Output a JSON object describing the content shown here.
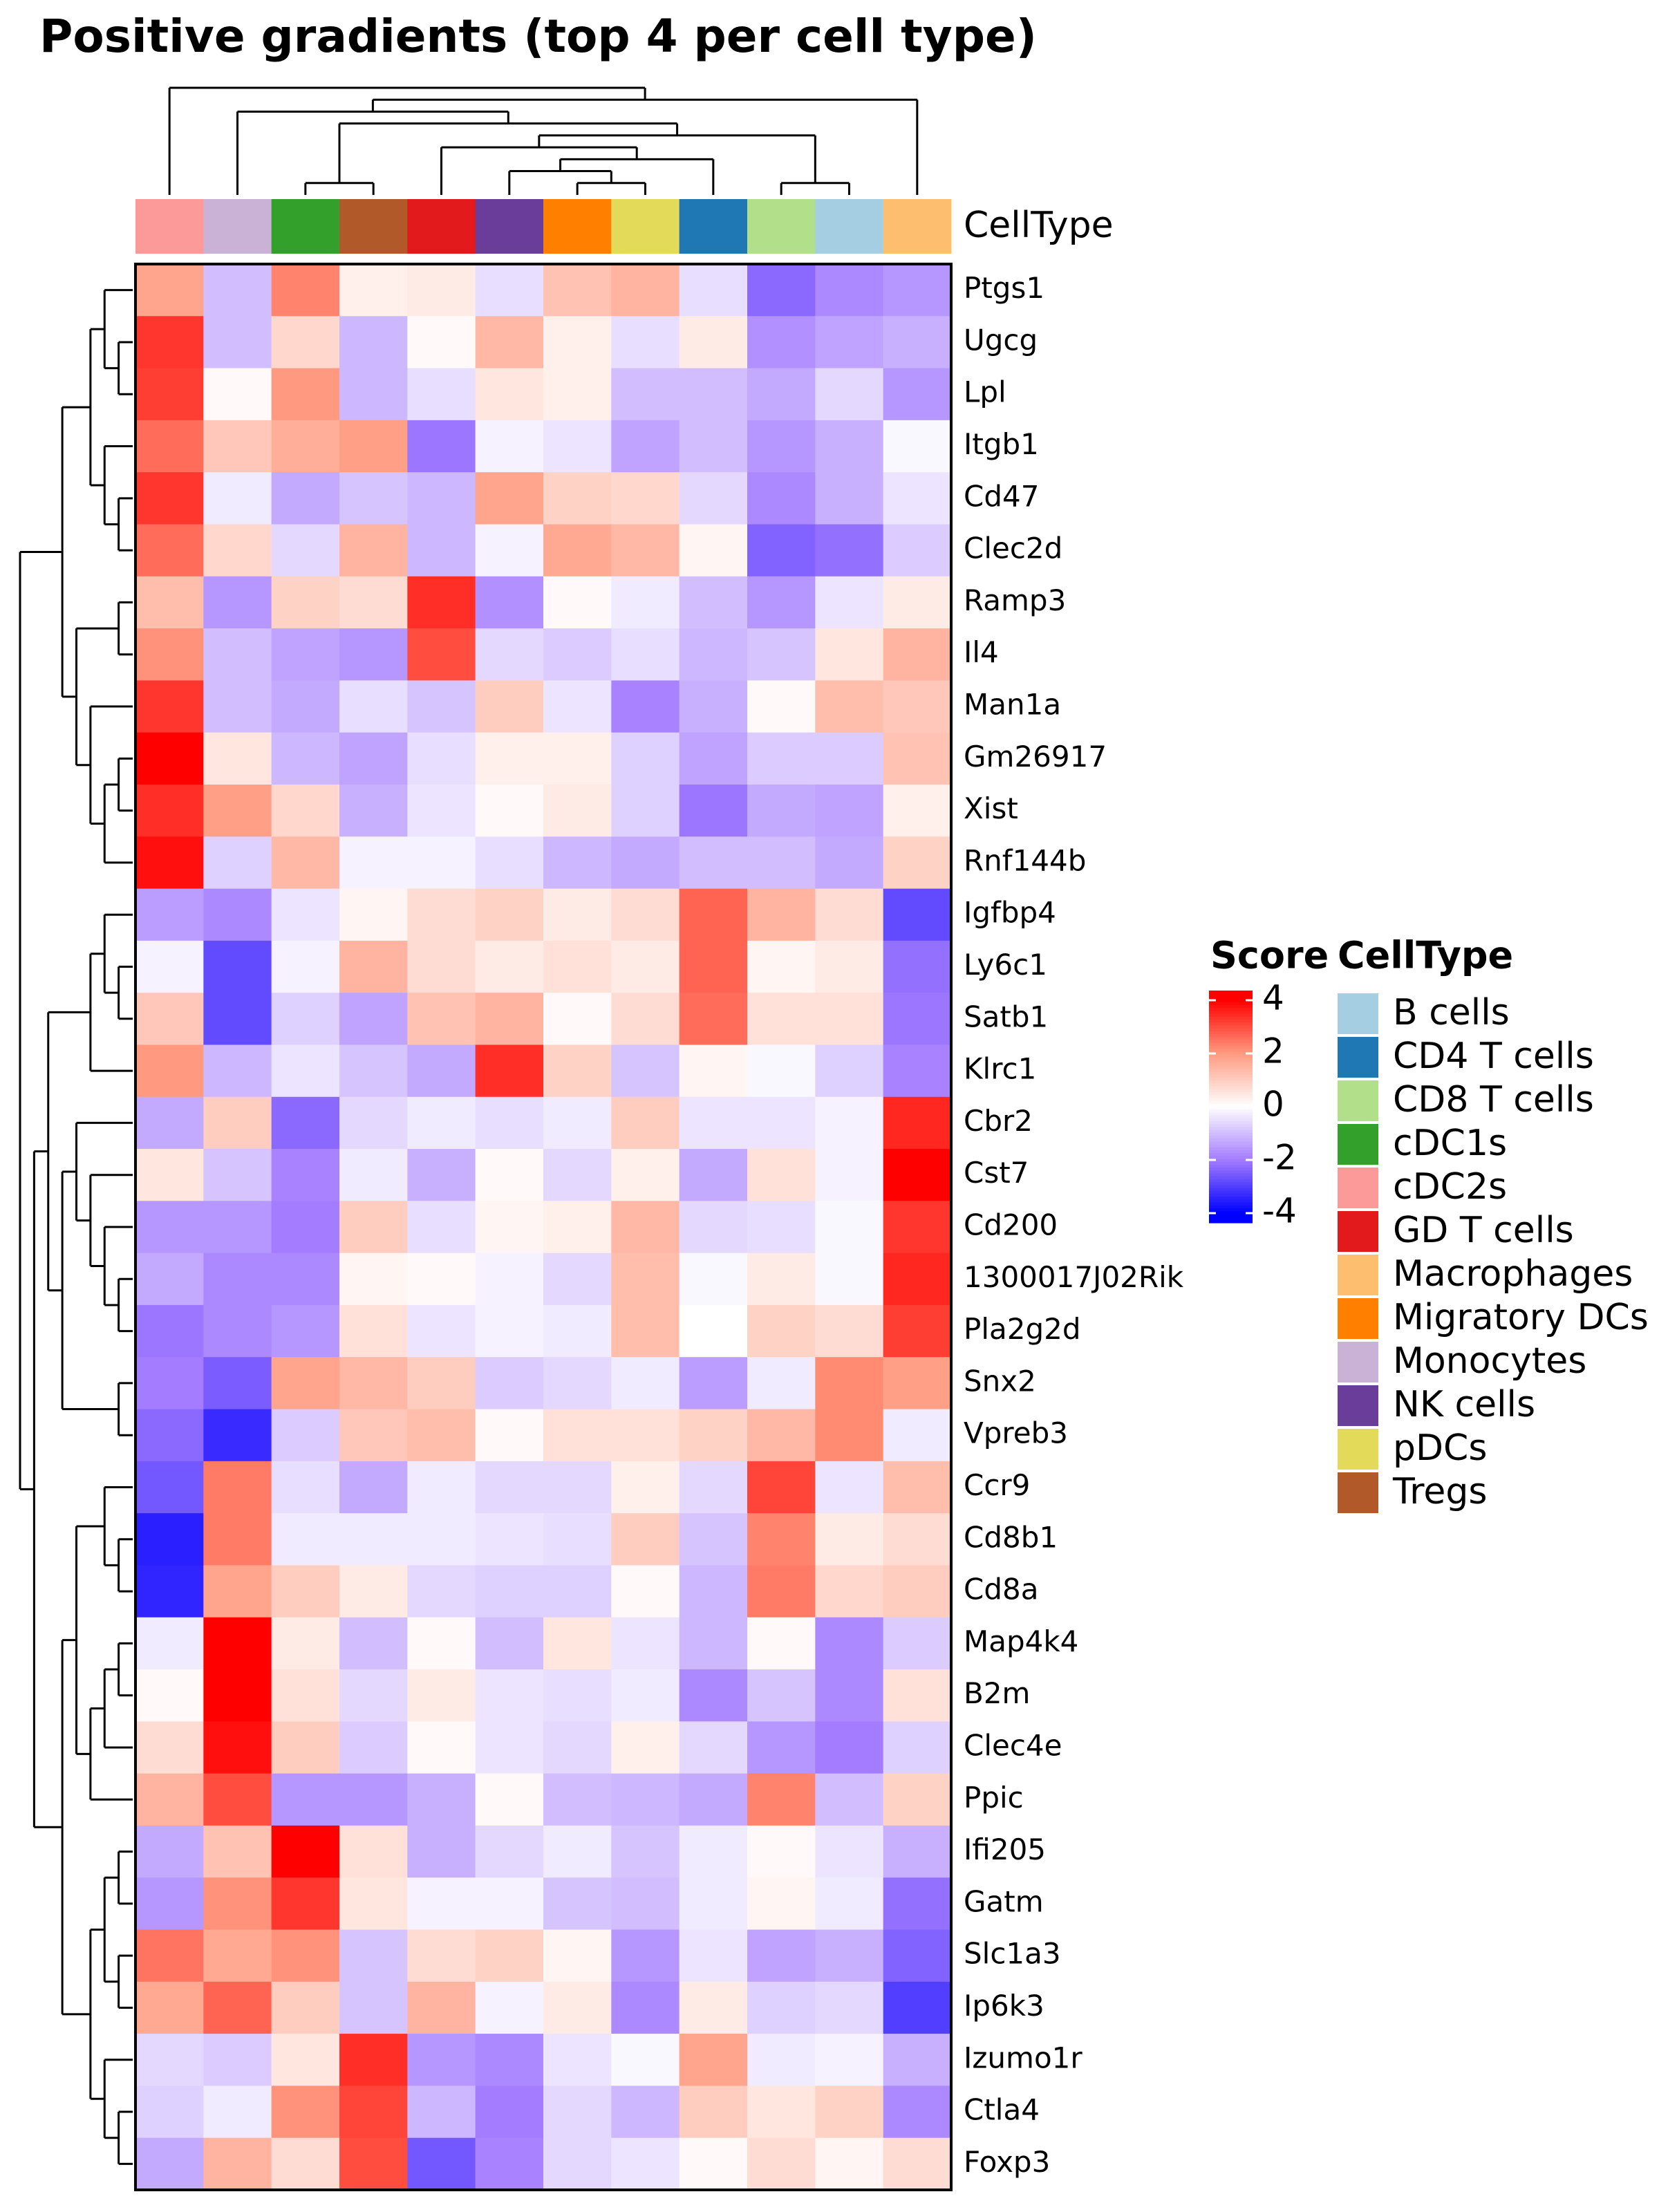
{
  "chart_data": {
    "type": "heatmap",
    "title": "Positive gradients (top 4 per cell type)",
    "annotation_label": "CellType",
    "rows": [
      "Ptgs1",
      "Ugcg",
      "Lpl",
      "Itgb1",
      "Cd47",
      "Clec2d",
      "Ramp3",
      "Il4",
      "Man1a",
      "Gm26917",
      "Xist",
      "Rnf144b",
      "Igfbp4",
      "Ly6c1",
      "Satb1",
      "Klrc1",
      "Cbr2",
      "Cst7",
      "Cd200",
      "1300017J02Rik",
      "Pla2g2d",
      "Snx2",
      "Vpreb3",
      "Ccr9",
      "Cd8b1",
      "Cd8a",
      "Map4k4",
      "B2m",
      "Clec4e",
      "Ppic",
      "Ifi205",
      "Gatm",
      "Slc1a3",
      "Ip6k3",
      "Izumo1r",
      "Ctla4",
      "Foxp3"
    ],
    "column_colors": [
      "#fb9a99",
      "#cab2d6",
      "#33a02c",
      "#b15928",
      "#e31a1c",
      "#6a3d9a",
      "#ff7f00",
      "#e3da5a",
      "#1f78b4",
      "#b2df8a",
      "#a6cee3",
      "#fdbf6f"
    ],
    "values": [
      [
        1.8,
        -1,
        2.3,
        0.3,
        0.4,
        -0.5,
        1.2,
        1.5,
        -0.5,
        -2.3,
        -1.8,
        -1.6
      ],
      [
        3.3,
        -1,
        0.8,
        -1.1,
        0.1,
        1.4,
        0.3,
        -0.5,
        0.4,
        -1.7,
        -1.4,
        -1.2
      ],
      [
        3.2,
        0.1,
        2,
        -1.1,
        -0.5,
        0.5,
        0.3,
        -1,
        -1,
        -1.3,
        -0.6,
        -1.6
      ],
      [
        2.6,
        1.1,
        1.6,
        1.9,
        -2.1,
        -0.2,
        -0.4,
        -1.4,
        -1,
        -1.6,
        -1.2,
        -0.1
      ],
      [
        3.3,
        -0.3,
        -1.3,
        -0.9,
        -1.1,
        1.8,
        0.9,
        0.8,
        -0.6,
        -1.8,
        -1.2,
        -0.4
      ],
      [
        2.6,
        0.8,
        -0.6,
        1.5,
        -1.1,
        -0.2,
        1.7,
        1.4,
        0.2,
        -2.4,
        -2.2,
        -0.8
      ],
      [
        1.3,
        -1.6,
        0.9,
        0.7,
        3.4,
        -1.7,
        0.1,
        -0.3,
        -1,
        -1.6,
        -0.4,
        0.4
      ],
      [
        2.1,
        -1,
        -1.4,
        -1.6,
        3,
        -0.6,
        -0.8,
        -0.5,
        -1.1,
        -0.9,
        0.5,
        1.5
      ],
      [
        3.3,
        -1,
        -1.3,
        -0.5,
        -0.9,
        1,
        -0.4,
        -1.9,
        -1.2,
        0.1,
        1.3,
        1.1
      ],
      [
        4,
        0.5,
        -1.1,
        -1.4,
        -0.5,
        0.3,
        0.3,
        -0.7,
        -1.4,
        -0.8,
        -0.8,
        1.2
      ],
      [
        3.4,
        1.9,
        0.8,
        -1.2,
        -0.4,
        0.1,
        0.4,
        -0.7,
        -2.1,
        -1.3,
        -1.4,
        0.3
      ],
      [
        3.8,
        -0.7,
        1.4,
        -0.2,
        -0.2,
        -0.5,
        -1.1,
        -1.3,
        -1,
        -1,
        -1.3,
        0.9
      ],
      [
        -1.5,
        -1.8,
        -0.4,
        0.2,
        0.7,
        0.9,
        0.4,
        0.7,
        2.7,
        1.5,
        0.7,
        -2.8
      ],
      [
        -0.2,
        -2.8,
        -0.2,
        1.5,
        0.7,
        0.4,
        0.6,
        0.4,
        2.7,
        0.2,
        0.4,
        -2.2
      ],
      [
        1.1,
        -2.8,
        -0.7,
        -1.4,
        1.2,
        1.5,
        0.1,
        0.7,
        2.6,
        0.6,
        0.6,
        -2.1
      ],
      [
        2,
        -1.1,
        -0.4,
        -0.9,
        -1.3,
        3.4,
        0.9,
        -0.9,
        0.2,
        -0.1,
        -0.7,
        -1.9
      ],
      [
        -1.3,
        1,
        -2.3,
        -0.6,
        -0.3,
        -0.5,
        -0.3,
        1,
        -0.4,
        -0.4,
        -0.2,
        3.5
      ],
      [
        0.5,
        -0.9,
        -1.9,
        -0.3,
        -1.2,
        0.1,
        -0.6,
        0.3,
        -1.3,
        0.6,
        -0.2,
        4
      ],
      [
        -1.6,
        -1.6,
        -2,
        1,
        -0.5,
        0.2,
        0.3,
        1.4,
        -0.6,
        -0.5,
        -0.1,
        3.3
      ],
      [
        -1.3,
        -1.8,
        -1.8,
        0.2,
        0.1,
        -0.2,
        -0.6,
        1.3,
        -0.1,
        0.4,
        -0.1,
        3.5
      ],
      [
        -2.1,
        -1.8,
        -1.6,
        0.6,
        -0.4,
        -0.2,
        -0.3,
        1.3,
        0,
        0.9,
        0.7,
        3.2
      ],
      [
        -2,
        -2.5,
        1.8,
        1.4,
        1,
        -0.8,
        -0.6,
        -0.3,
        -1.5,
        -0.3,
        2.2,
        1.9
      ],
      [
        -2.3,
        -3.3,
        -0.8,
        1.1,
        1.3,
        0.1,
        0.6,
        0.6,
        0.9,
        1.4,
        2.2,
        -0.3
      ],
      [
        -2.6,
        2.4,
        -0.5,
        -1.3,
        -0.3,
        -0.6,
        -0.6,
        0.3,
        -0.6,
        3.1,
        -0.4,
        1.3
      ],
      [
        -3.5,
        2.4,
        -0.3,
        -0.3,
        -0.3,
        -0.4,
        -0.5,
        1,
        -0.9,
        2.3,
        0.4,
        0.7
      ],
      [
        -3.4,
        1.8,
        1,
        0.4,
        -0.6,
        -0.7,
        -0.7,
        0.1,
        -1.1,
        2.4,
        0.8,
        1
      ],
      [
        -0.3,
        4,
        0.4,
        -1,
        0.1,
        -1,
        0.5,
        -0.4,
        -1.1,
        0.1,
        -1.8,
        -0.8
      ],
      [
        0.1,
        4,
        0.6,
        -0.6,
        0.4,
        -0.4,
        -0.5,
        -0.3,
        -1.8,
        -0.9,
        -1.8,
        0.6
      ],
      [
        0.7,
        3.8,
        1,
        -0.8,
        0.1,
        -0.4,
        -0.6,
        0.3,
        -0.6,
        -1.6,
        -2,
        -0.7
      ],
      [
        1.5,
        3,
        -1.6,
        -1.6,
        -1.2,
        0.1,
        -1,
        -1.1,
        -1.3,
        2.3,
        -1,
        0.9
      ],
      [
        -1.3,
        1.2,
        4,
        0.6,
        -1.2,
        -0.6,
        -0.3,
        -0.9,
        -0.3,
        0.1,
        -0.4,
        -1.2
      ],
      [
        -1.6,
        2.1,
        3.3,
        0.5,
        -0.2,
        -0.2,
        -0.9,
        -1,
        -0.3,
        0.2,
        -0.3,
        -2.2
      ],
      [
        2.5,
        1.7,
        2.1,
        -0.9,
        0.7,
        0.9,
        0.2,
        -1.6,
        -0.4,
        -1.4,
        -1.2,
        -2.4
      ],
      [
        1.7,
        2.7,
        1,
        -0.9,
        1.5,
        -0.2,
        0.4,
        -1.8,
        0.4,
        -0.7,
        -0.6,
        -3
      ],
      [
        -0.6,
        -0.8,
        0.5,
        3.4,
        -1.6,
        -1.8,
        -0.4,
        -0.1,
        1.8,
        -0.3,
        -0.2,
        -1.2
      ],
      [
        -0.7,
        -0.3,
        2.1,
        3.1,
        -1.1,
        -2,
        -0.6,
        -1.1,
        1,
        0.5,
        0.9,
        -1.8
      ],
      [
        -1.3,
        1.5,
        0.7,
        3,
        -2.6,
        -1.9,
        -0.6,
        -0.4,
        0.1,
        0.7,
        0.2,
        0.7
      ]
    ],
    "colorbar_title": "Score",
    "colorbar_ticks": [
      4,
      2,
      0,
      -2,
      -4
    ],
    "color_stops": [
      {
        "value": -4,
        "color": "#0000ff"
      },
      {
        "value": -2,
        "color": "#a47cff"
      },
      {
        "value": 0,
        "color": "#ffffff"
      },
      {
        "value": 2,
        "color": "#ff9a80"
      },
      {
        "value": 4,
        "color": "#ff0000"
      }
    ],
    "legend_title": "CellType",
    "legend": [
      {
        "name": "B cells",
        "color": "#a6cee3"
      },
      {
        "name": "CD4 T cells",
        "color": "#1f78b4"
      },
      {
        "name": "CD8 T cells",
        "color": "#b2df8a"
      },
      {
        "name": "cDC1s",
        "color": "#33a02c"
      },
      {
        "name": "cDC2s",
        "color": "#fb9a99"
      },
      {
        "name": "GD T cells",
        "color": "#e31a1c"
      },
      {
        "name": "Macrophages",
        "color": "#fdbf6f"
      },
      {
        "name": "Migratory DCs",
        "color": "#ff7f00"
      },
      {
        "name": "Monocytes",
        "color": "#cab2d6"
      },
      {
        "name": "NK cells",
        "color": "#6a3d9a"
      },
      {
        "name": "pDCs",
        "color": "#e3da5a"
      },
      {
        "name": "Tregs",
        "color": "#b15928"
      }
    ]
  }
}
